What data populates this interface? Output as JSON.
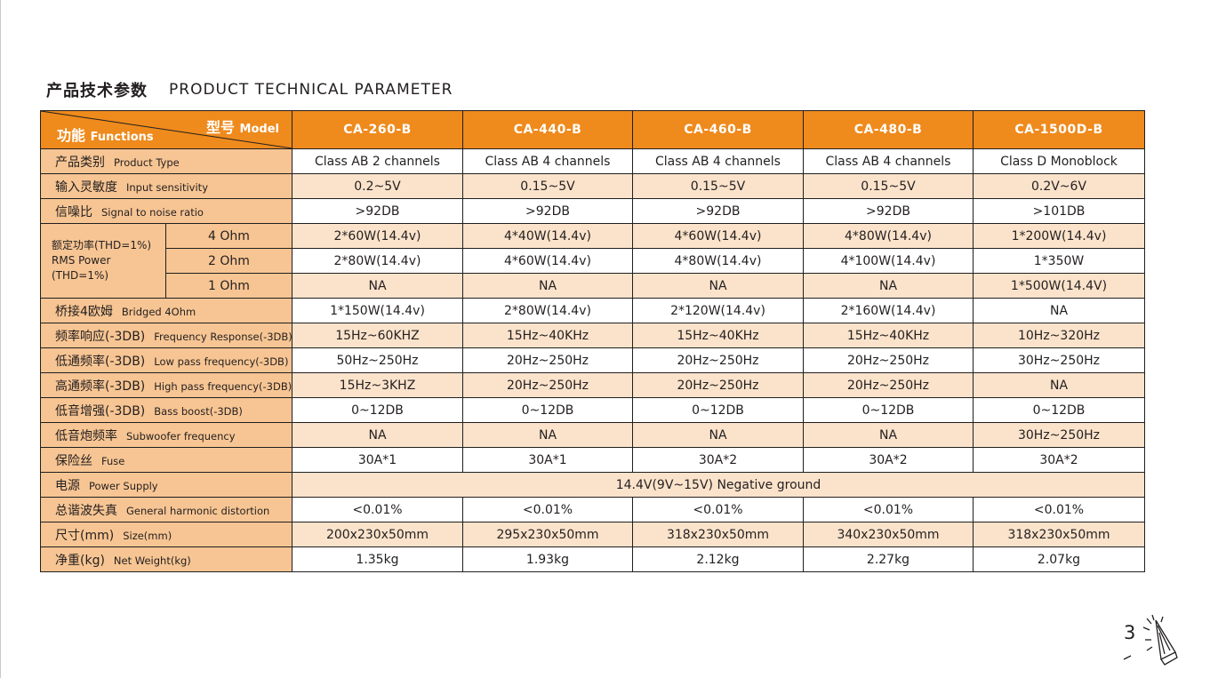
{
  "heading": {
    "zh": "产品技术参数",
    "en": "PRODUCT TECHNICAL PARAMETER"
  },
  "header": {
    "model_zh": "型号",
    "model_en": "Model",
    "func_zh": "功能",
    "func_en": "Functions",
    "models": [
      "CA-260-B",
      "CA-440-B",
      "CA-460-B",
      "CA-480-B",
      "CA-1500D-B"
    ]
  },
  "rows": {
    "product_type": {
      "zh": "产品类别",
      "en": "Product Type",
      "values": [
        "Class AB 2 channels",
        "Class AB 4 channels",
        "Class AB 4 channels",
        "Class AB 4 channels",
        "Class D Monoblock"
      ]
    },
    "input_sensitivity": {
      "zh": "输入灵敏度",
      "en": "Input sensitivity",
      "values": [
        "0.2~5V",
        "0.15~5V",
        "0.15~5V",
        "0.15~5V",
        "0.2V~6V"
      ]
    },
    "snr": {
      "zh": "信噪比",
      "en": "Signal to noise ratio",
      "values": [
        ">92DB",
        ">92DB",
        ">92DB",
        ">92DB",
        ">101DB"
      ]
    },
    "rms": {
      "label_zh": "额定功率(THD=1%)",
      "label_en_1": "RMS Power",
      "label_en_2": "(THD=1%)",
      "ohm4": {
        "sub": "4 Ohm",
        "values": [
          "2*60W(14.4v)",
          "4*40W(14.4v)",
          "4*60W(14.4v)",
          "4*80W(14.4v)",
          "1*200W(14.4v)"
        ]
      },
      "ohm2": {
        "sub": "2 Ohm",
        "values": [
          "2*80W(14.4v)",
          "4*60W(14.4v)",
          "4*80W(14.4v)",
          "4*100W(14.4v)",
          "1*350W"
        ]
      },
      "ohm1": {
        "sub": "1 Ohm",
        "values": [
          "NA",
          "NA",
          "NA",
          "NA",
          "1*500W(14.4V)"
        ]
      }
    },
    "bridged": {
      "zh": "桥接4欧姆",
      "en": "Bridged 4Ohm",
      "values": [
        "1*150W(14.4v)",
        "2*80W(14.4v)",
        "2*120W(14.4v)",
        "2*160W(14.4v)",
        "NA"
      ]
    },
    "freq_response": {
      "zh": "频率响应(-3DB)",
      "en": "Frequency Response(-3DB)",
      "values": [
        "15Hz~60KHZ",
        "15Hz~40KHz",
        "15Hz~40KHz",
        "15Hz~40KHz",
        "10Hz~320Hz"
      ]
    },
    "low_pass": {
      "zh": "低通频率(-3DB)",
      "en": "Low pass frequency(-3DB)",
      "values": [
        "50Hz~250Hz",
        "20Hz~250Hz",
        "20Hz~250Hz",
        "20Hz~250Hz",
        "30Hz~250Hz"
      ]
    },
    "high_pass": {
      "zh": "高通频率(-3DB)",
      "en": "High pass frequency(-3DB)",
      "values": [
        "15Hz~3KHZ",
        "20Hz~250Hz",
        "20Hz~250Hz",
        "20Hz~250Hz",
        "NA"
      ]
    },
    "bass_boost": {
      "zh": "低音增强(-3DB)",
      "en": "Bass boost(-3DB)",
      "values": [
        "0~12DB",
        "0~12DB",
        "0~12DB",
        "0~12DB",
        "0~12DB"
      ]
    },
    "subwoofer": {
      "zh": "低音炮频率",
      "en": "Subwoofer frequency",
      "values": [
        "NA",
        "NA",
        "NA",
        "NA",
        "30Hz~250Hz"
      ]
    },
    "fuse": {
      "zh": "保险丝",
      "en": "Fuse",
      "values": [
        "30A*1",
        "30A*1",
        "30A*2",
        "30A*2",
        "30A*2"
      ]
    },
    "power_supply": {
      "zh": "电源",
      "en": "Power Supply",
      "value": "14.4V(9V~15V) Negative ground"
    },
    "thd": {
      "zh": "总谐波失真",
      "en": "General harmonic distortion",
      "values": [
        "<0.01%",
        "<0.01%",
        "<0.01%",
        "<0.01%",
        "<0.01%"
      ]
    },
    "size": {
      "zh": "尺寸(mm)",
      "en": "Size(mm)",
      "values": [
        "200x230x50mm",
        "295x230x50mm",
        "318x230x50mm",
        "340x230x50mm",
        "318x230x50mm"
      ]
    },
    "net_weight": {
      "zh": "净重(kg)",
      "en": "Net Weight(kg)",
      "values": [
        "1.35kg",
        "1.93kg",
        "2.12kg",
        "2.27kg",
        "2.07kg"
      ]
    }
  },
  "page_number": "3",
  "icons": {
    "corner": "page-speaker-icon"
  },
  "colors": {
    "header_orange": "#ef8a1c",
    "label_peach": "#f7c593",
    "stripe": "#fbe3cb",
    "border": "#1f1f1f"
  }
}
